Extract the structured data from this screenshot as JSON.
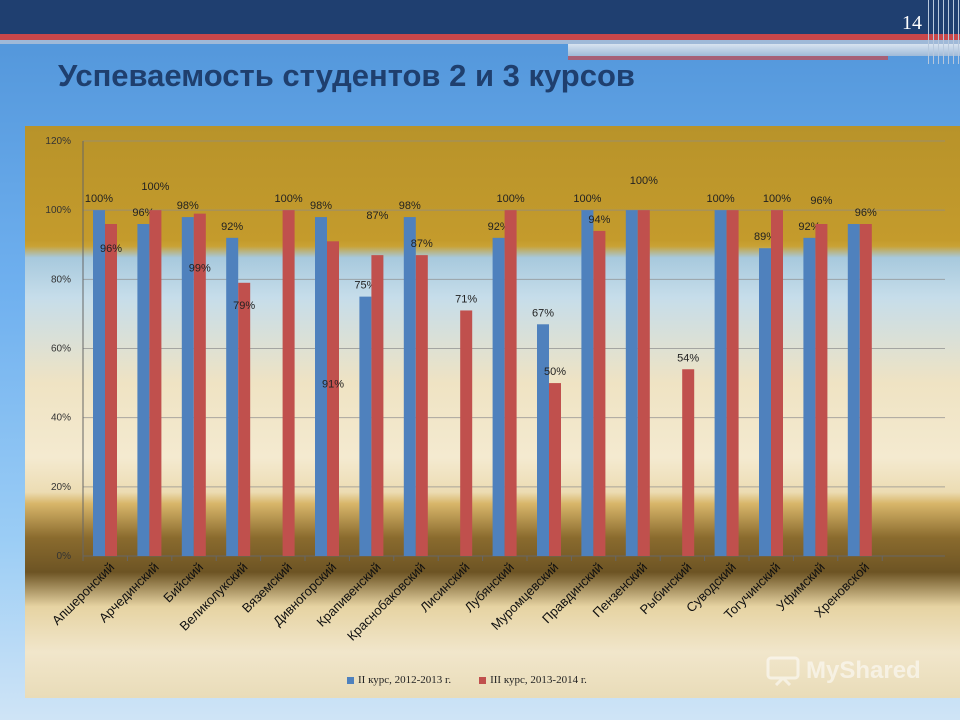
{
  "slide": {
    "number": "14",
    "title": "Успеваемость студентов 2 и 3 курсов"
  },
  "watermark": "MyShared",
  "chart_data": {
    "type": "bar",
    "title": "",
    "xlabel": "",
    "ylabel": "",
    "ylim": [
      0,
      120
    ],
    "yticks": [
      "0%",
      "20%",
      "40%",
      "60%",
      "80%",
      "100%",
      "120%"
    ],
    "grid": true,
    "legend_position": "bottom",
    "categories": [
      "Апшеронский",
      "Арчединский",
      "Бийский",
      "Великолукский",
      "Вяземский",
      "Дивногорский",
      "Крапивенский",
      "Краснобаковский",
      "Лисинский",
      "Лубянский",
      "Муромцевский",
      "Правдинский",
      "Пензенский",
      "Рыбинский",
      "Суводский",
      "Тогучинский",
      "Уфимский",
      "Хреновской"
    ],
    "series": [
      {
        "name": "II курс, 2012-2013 г.",
        "color": "#4f81bd",
        "values": [
          100,
          96,
          98,
          92,
          null,
          98,
          75,
          98,
          null,
          92,
          67,
          100,
          100,
          null,
          100,
          89,
          92,
          96
        ],
        "labels": [
          "100%",
          "96%",
          "98%",
          "92%",
          "",
          "98%",
          "75%",
          "98%",
          "",
          "92%",
          "67%",
          "100%",
          "",
          "",
          "100%",
          "89%",
          "92%",
          ""
        ]
      },
      {
        "name": "III курс, 2013-2014 г.",
        "color": "#c0504d",
        "values": [
          96,
          100,
          99,
          79,
          100,
          91,
          87,
          87,
          71,
          100,
          50,
          94,
          100,
          54,
          100,
          100,
          96,
          96
        ],
        "labels": [
          "96%",
          "100%",
          "99%",
          "79%",
          "100%",
          "91%",
          "87%",
          "87%",
          "71%",
          "100%",
          "50%",
          "94%",
          "100%",
          "54%",
          "",
          "100%",
          "96%",
          "96%"
        ]
      }
    ]
  }
}
